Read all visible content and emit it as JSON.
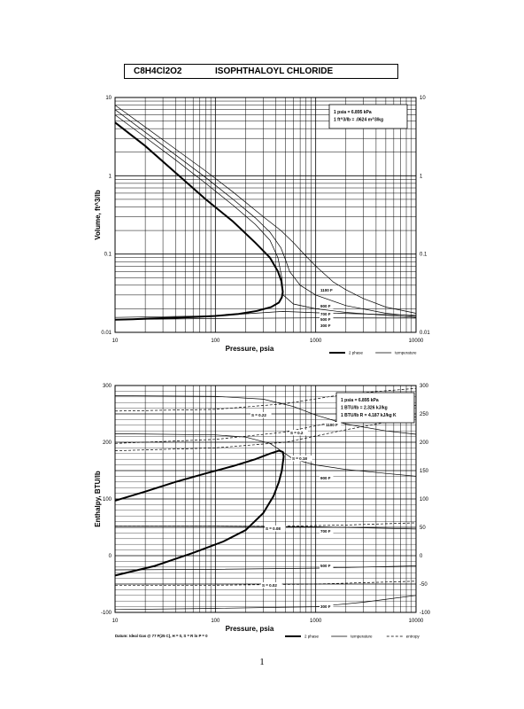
{
  "title": {
    "formula": "C8H4Cl2O2",
    "name": "ISOPHTHALOYL CHLORIDE"
  },
  "page_number": "1",
  "chart_data": [
    {
      "type": "line",
      "xscale": "log",
      "yscale": "log",
      "xlim": [
        10,
        10000
      ],
      "ylim": [
        0.01,
        10
      ],
      "xlabel": "Pressure,  psia",
      "ylabel": "Volume, ft^3/lb",
      "x_ticks": [
        "10",
        "100",
        "1000",
        "10000"
      ],
      "y_ticks": [
        "0.01",
        "0.1",
        "1",
        "10"
      ],
      "y_ticks_right": [
        "0.01",
        "0.1",
        "1",
        "10"
      ],
      "grid": true,
      "conversion_box": [
        "1 psia  =  6.895 kPa",
        "1 ft^3/lb  =  .0624 m^3/kg"
      ],
      "legend": [
        {
          "label": "2 phase",
          "style": "thick"
        },
        {
          "label": "temperature",
          "style": "thin"
        }
      ],
      "two_phase": {
        "x": [
          10,
          15,
          22,
          35,
          60,
          100,
          170,
          260,
          360,
          430,
          460,
          470,
          455,
          420,
          350,
          250,
          150,
          80,
          40,
          20,
          10
        ],
        "y": [
          0.0145,
          0.0147,
          0.015,
          0.0153,
          0.0157,
          0.0162,
          0.0172,
          0.0188,
          0.021,
          0.024,
          0.028,
          0.033,
          0.045,
          0.06,
          0.09,
          0.14,
          0.26,
          0.5,
          1.1,
          2.4,
          4.8
        ]
      },
      "series": [
        {
          "name": "1100 F",
          "x": [
            10,
            20,
            40,
            80,
            150,
            300,
            450,
            600,
            800,
            1000,
            1500,
            2000,
            3000,
            5000,
            10000
          ],
          "y": [
            8,
            4.2,
            2.2,
            1.15,
            0.62,
            0.3,
            0.2,
            0.14,
            0.094,
            0.07,
            0.044,
            0.035,
            0.027,
            0.021,
            0.0175
          ]
        },
        {
          "name": "900 F",
          "x": [
            10,
            20,
            40,
            80,
            150,
            250,
            350,
            450,
            500,
            550,
            700,
            1000,
            2000,
            5000,
            10000
          ],
          "y": [
            7,
            3.6,
            1.85,
            0.95,
            0.5,
            0.29,
            0.19,
            0.12,
            0.085,
            0.06,
            0.04,
            0.03,
            0.022,
            0.0175,
            0.016
          ]
        },
        {
          "name": "700 F",
          "x": [
            10,
            20,
            40,
            80,
            150,
            250,
            350,
            420,
            460,
            475,
            600,
            1000,
            2000,
            5000,
            10000
          ],
          "y": [
            6,
            3.1,
            1.6,
            0.8,
            0.42,
            0.24,
            0.15,
            0.09,
            0.05,
            0.03,
            0.023,
            0.02,
            0.018,
            0.0165,
            0.0155
          ]
        },
        {
          "name": "500 F",
          "x": [
            10,
            100,
            470,
            1000,
            10000
          ],
          "y": [
            0.0155,
            0.0163,
            0.0185,
            0.0178,
            0.0165
          ]
        },
        {
          "name": "300 F",
          "x": [
            10,
            100,
            1000,
            10000
          ],
          "y": [
            0.0145,
            0.015,
            0.0153,
            0.0152
          ]
        }
      ]
    },
    {
      "type": "line",
      "xscale": "log",
      "xlim": [
        10,
        10000
      ],
      "ylim": [
        -100,
        300
      ],
      "xlabel": "Pressure,  psia",
      "ylabel": "Enthalpy, BTU/lb",
      "x_ticks": [
        "10",
        "100",
        "1000",
        "10000"
      ],
      "y_ticks": [
        "-100",
        "0",
        "100",
        "200",
        "300"
      ],
      "y_ticks_right": [
        "-100",
        "-50",
        "0",
        "50",
        "100",
        "150",
        "200",
        "250",
        "300"
      ],
      "grid": true,
      "conversion_box": [
        "1 psia  =  6.895 kPa",
        "1 BTU/lb  =  2.326 kJ/kg",
        "1 BTU/lb R  =  4.187 kJ/kg K"
      ],
      "datum_note": "Datum: Ideal Gas @ 77 F(25 C),  H = 0,  S = R ln P = 0",
      "legend": [
        {
          "label": "2 phase",
          "style": "thick"
        },
        {
          "label": "temperature",
          "style": "thin"
        },
        {
          "label": "entropy",
          "style": "dashed"
        }
      ],
      "two_phase": {
        "x": [
          10,
          20,
          40,
          80,
          150,
          250,
          350,
          430,
          470,
          480,
          460,
          430,
          380,
          300,
          200,
          120,
          60,
          25,
          10
        ],
        "y": [
          97,
          113,
          130,
          145,
          158,
          170,
          180,
          185,
          183,
          175,
          150,
          130,
          105,
          75,
          45,
          25,
          5,
          -18,
          -35
        ]
      },
      "temperature_series": [
        {
          "name": "1100 F",
          "x": [
            10,
            100,
            300,
            600,
            1000,
            2000,
            5000,
            10000
          ],
          "y": [
            282,
            281,
            276,
            263,
            248,
            232,
            220,
            214
          ]
        },
        {
          "name": "900 F",
          "x": [
            10,
            100,
            200,
            350,
            470,
            600,
            1000,
            2000,
            5000,
            10000
          ],
          "y": [
            215,
            213,
            209,
            198,
            183,
            170,
            160,
            152,
            145,
            140
          ]
        },
        {
          "name": "700 F",
          "x": [
            10,
            100,
            1000,
            10000
          ],
          "y": [
            52,
            52,
            51,
            47
          ]
        },
        {
          "name": "500 F",
          "x": [
            10,
            100,
            1000,
            10000
          ],
          "y": [
            -25,
            -24,
            -22,
            -18
          ]
        },
        {
          "name": "300 F",
          "x": [
            10,
            100,
            1000,
            3000,
            10000
          ],
          "y": [
            -95,
            -93,
            -90,
            -82,
            -70
          ]
        }
      ],
      "entropy_series": [
        {
          "name": "S = 0.22",
          "x": [
            10,
            100,
            500,
            2000,
            10000
          ],
          "y": [
            255,
            258,
            268,
            285,
            295
          ]
        },
        {
          "name": "S = 0.2",
          "x": [
            10,
            100,
            500,
            2000,
            10000
          ],
          "y": [
            198,
            205,
            218,
            240,
            265
          ]
        },
        {
          "name": "S = 0.18",
          "x": [
            10,
            100,
            500,
            2000,
            10000
          ],
          "y": [
            185,
            190,
            200,
            222,
            245
          ]
        },
        {
          "name": "S = 0.08",
          "x": [
            10,
            100,
            500,
            2000,
            10000
          ],
          "y": [
            52,
            52,
            52,
            54,
            58
          ]
        },
        {
          "name": "S = 0.02",
          "x": [
            10,
            100,
            1000,
            10000
          ],
          "y": [
            -52,
            -52,
            -50,
            -45
          ]
        }
      ]
    }
  ]
}
